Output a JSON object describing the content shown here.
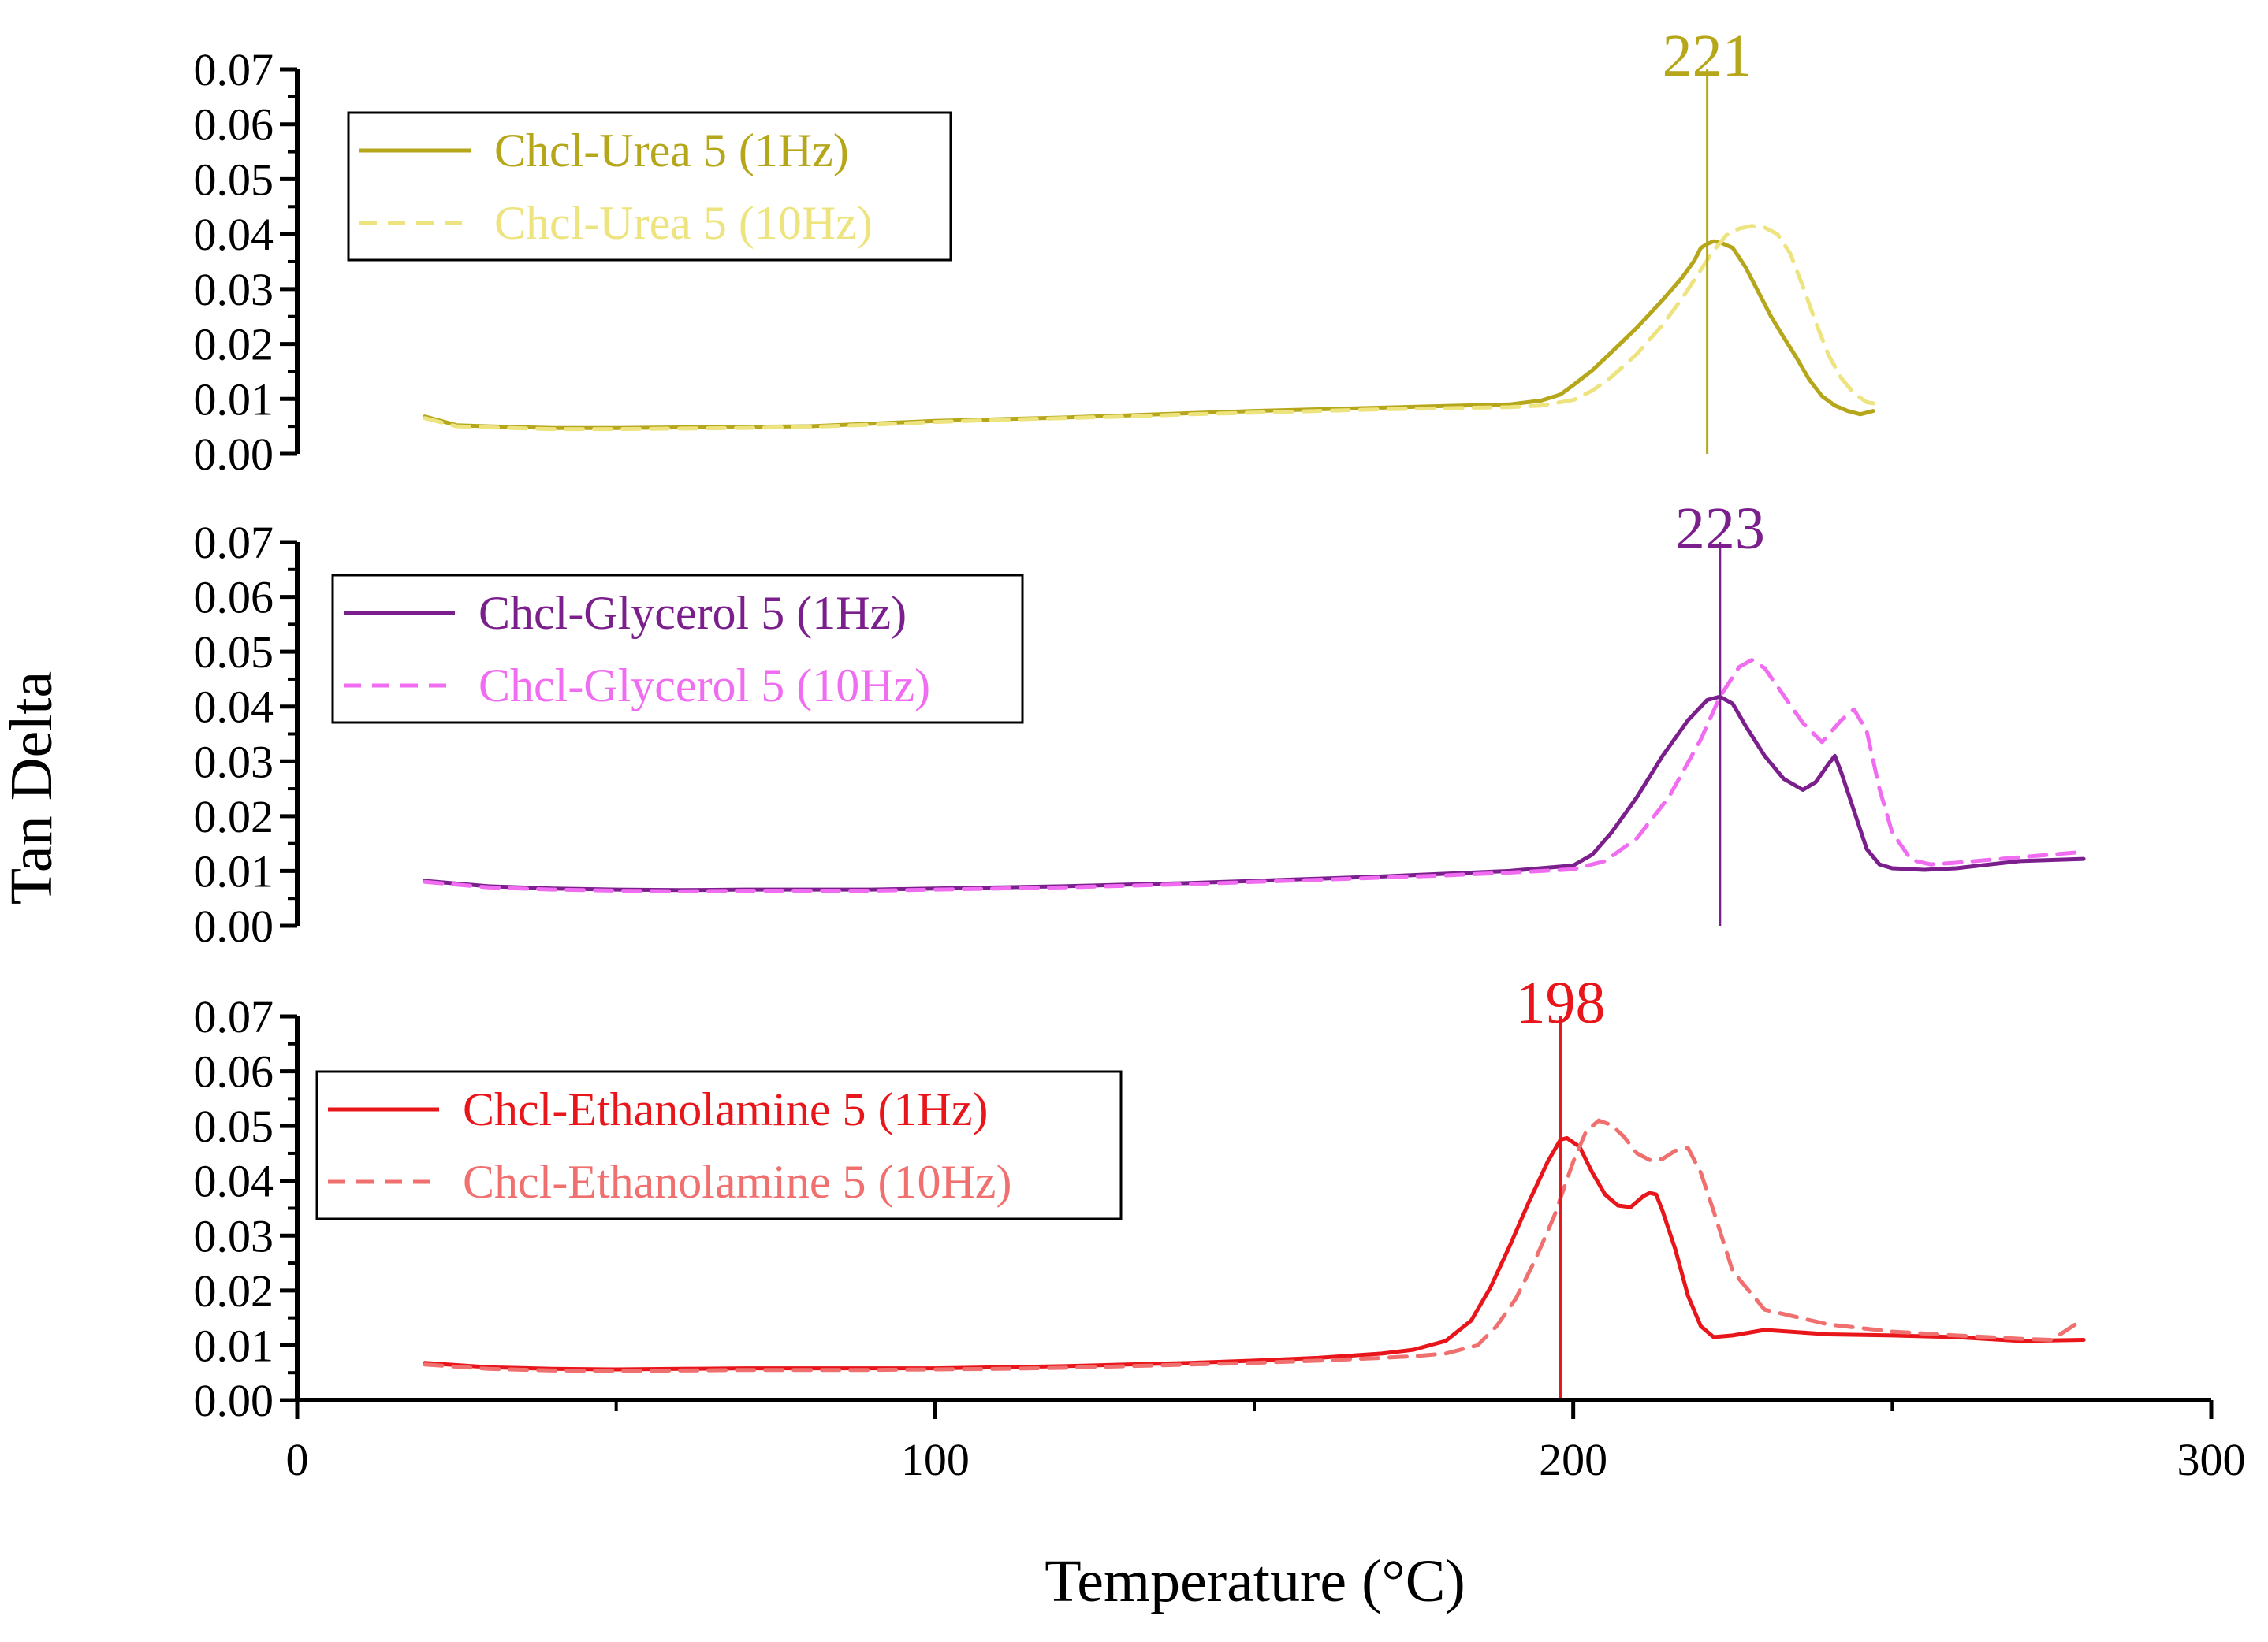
{
  "chart_data": {
    "type": "line",
    "xlabel": "Temperature (°C)",
    "ylabel": "Tan Delta",
    "xlim": [
      0,
      300
    ],
    "x_ticks": [
      "0",
      "100",
      "200",
      "300"
    ],
    "ylim": [
      0,
      0.07
    ],
    "y_ticks": [
      "0.00",
      "0.01",
      "0.02",
      "0.03",
      "0.04",
      "0.05",
      "0.06",
      "0.07"
    ],
    "panels": [
      {
        "peak_label": "221",
        "peak_x": 221,
        "peak_color": "#b5a61a",
        "series": [
          {
            "name": "Chcl-Urea 5 (1Hz)",
            "color": "#b5a61a",
            "dash": "solid",
            "x": [
              20,
              25,
              30,
              40,
              50,
              60,
              70,
              80,
              90,
              100,
              110,
              120,
              130,
              140,
              150,
              160,
              170,
              180,
              190,
              195,
              198,
              200,
              203,
              206,
              210,
              214,
              217,
              219,
              220,
              221,
              222,
              223,
              225,
              227,
              229,
              231,
              233,
              235,
              237,
              239,
              241,
              243,
              245,
              247
            ],
            "y": [
              0.0068,
              0.0052,
              0.005,
              0.0047,
              0.0047,
              0.0048,
              0.0049,
              0.005,
              0.0055,
              0.006,
              0.0063,
              0.0066,
              0.007,
              0.0074,
              0.0078,
              0.0081,
              0.0084,
              0.0087,
              0.009,
              0.0097,
              0.0108,
              0.0125,
              0.0152,
              0.0185,
              0.023,
              0.028,
              0.032,
              0.0352,
              0.0375,
              0.0382,
              0.0387,
              0.0385,
              0.0375,
              0.034,
              0.0295,
              0.025,
              0.0212,
              0.0175,
              0.0135,
              0.0105,
              0.0088,
              0.0078,
              0.0072,
              0.0078
            ]
          },
          {
            "name": "Chcl-Urea 5 (10Hz)",
            "color": "#ede47f",
            "dash": "dashed",
            "x": [
              20,
              25,
              30,
              40,
              50,
              60,
              70,
              80,
              90,
              100,
              110,
              120,
              130,
              140,
              150,
              160,
              170,
              180,
              190,
              195,
              200,
              203,
              206,
              210,
              214,
              217,
              220,
              222,
              224,
              226,
              228,
              230,
              232,
              234,
              236,
              238,
              240,
              242,
              244,
              246,
              247
            ],
            "y": [
              0.0065,
              0.005,
              0.0048,
              0.0045,
              0.0045,
              0.0046,
              0.0047,
              0.0049,
              0.0053,
              0.0058,
              0.0062,
              0.0065,
              0.0068,
              0.0072,
              0.0075,
              0.0078,
              0.0081,
              0.0083,
              0.0085,
              0.0088,
              0.0098,
              0.0115,
              0.014,
              0.0182,
              0.0235,
              0.0282,
              0.0335,
              0.037,
              0.0398,
              0.041,
              0.0415,
              0.0412,
              0.04,
              0.0365,
              0.0305,
              0.024,
              0.018,
              0.0138,
              0.011,
              0.0094,
              0.0092
            ]
          }
        ],
        "legend_position": "top-left"
      },
      {
        "peak_label": "223",
        "peak_x": 223,
        "peak_color": "#7b1f8c",
        "series": [
          {
            "name": "Chcl-Glycerol 5 (1Hz)",
            "color": "#7b1f8c",
            "dash": "solid",
            "x": [
              20,
              30,
              40,
              50,
              60,
              70,
              80,
              90,
              100,
              110,
              120,
              130,
              140,
              150,
              160,
              170,
              180,
              190,
              200,
              203,
              206,
              210,
              214,
              218,
              221,
              223,
              225,
              227,
              230,
              233,
              236,
              238,
              240,
              241,
              242,
              244,
              246,
              248,
              250,
              255,
              260,
              270,
              280
            ],
            "y": [
              0.0082,
              0.0072,
              0.0068,
              0.0066,
              0.0065,
              0.0066,
              0.0066,
              0.0066,
              0.0068,
              0.007,
              0.0072,
              0.0075,
              0.0078,
              0.0082,
              0.0086,
              0.009,
              0.0095,
              0.01,
              0.011,
              0.013,
              0.017,
              0.0235,
              0.031,
              0.0375,
              0.0412,
              0.0418,
              0.0405,
              0.0365,
              0.031,
              0.0268,
              0.0248,
              0.0262,
              0.0295,
              0.031,
              0.028,
              0.021,
              0.014,
              0.0112,
              0.0105,
              0.0102,
              0.0105,
              0.0118,
              0.0122
            ]
          },
          {
            "name": "Chcl-Glycerol 5 (10Hz)",
            "color": "#f06cf0",
            "dash": "dashed",
            "x": [
              20,
              30,
              40,
              50,
              60,
              70,
              80,
              90,
              100,
              110,
              120,
              130,
              140,
              150,
              160,
              170,
              180,
              190,
              200,
              205,
              210,
              215,
              220,
              223,
              226,
              228,
              230,
              233,
              236,
              239,
              242,
              244,
              246,
              248,
              250,
              253,
              256,
              260,
              270,
              280
            ],
            "y": [
              0.008,
              0.007,
              0.0066,
              0.0064,
              0.0063,
              0.0064,
              0.0064,
              0.0064,
              0.0066,
              0.0068,
              0.007,
              0.0073,
              0.0076,
              0.008,
              0.0084,
              0.0088,
              0.0092,
              0.0097,
              0.0103,
              0.0118,
              0.016,
              0.0235,
              0.034,
              0.0418,
              0.0472,
              0.0485,
              0.047,
              0.042,
              0.037,
              0.0335,
              0.0375,
              0.0395,
              0.0355,
              0.025,
              0.017,
              0.012,
              0.0112,
              0.0115,
              0.0125,
              0.0135
            ]
          }
        ],
        "legend_position": "top-left"
      },
      {
        "peak_label": "198",
        "peak_x": 198,
        "peak_color": "#e8151a",
        "series": [
          {
            "name": "Chcl-Ethanolamine 5 (1Hz)",
            "color": "#e8151a",
            "dash": "solid",
            "x": [
              20,
              30,
              40,
              50,
              60,
              70,
              80,
              90,
              100,
              110,
              120,
              130,
              140,
              150,
              160,
              170,
              175,
              180,
              184,
              187,
              190,
              193,
              196,
              198,
              199,
              201,
              203,
              205,
              207,
              209,
              211,
              212,
              213,
              214,
              216,
              218,
              220,
              222,
              225,
              230,
              240,
              250,
              260,
              270,
              280
            ],
            "y": [
              0.0068,
              0.006,
              0.0057,
              0.0056,
              0.0057,
              0.0058,
              0.0058,
              0.0058,
              0.0058,
              0.006,
              0.0062,
              0.0065,
              0.0068,
              0.0072,
              0.0077,
              0.0085,
              0.0092,
              0.0108,
              0.0145,
              0.0205,
              0.028,
              0.036,
              0.0435,
              0.0475,
              0.0478,
              0.0462,
              0.0415,
              0.0375,
              0.0355,
              0.0352,
              0.0372,
              0.0378,
              0.0375,
              0.0345,
              0.0275,
              0.019,
              0.0135,
              0.0115,
              0.0118,
              0.0128,
              0.012,
              0.0118,
              0.0115,
              0.0108,
              0.011
            ]
          },
          {
            "name": "Chcl-Ethanolamine 5 (10Hz)",
            "color": "#f07070",
            "dash": "dashed",
            "x": [
              20,
              30,
              40,
              50,
              60,
              70,
              80,
              90,
              100,
              110,
              120,
              130,
              140,
              150,
              160,
              170,
              175,
              180,
              185,
              188,
              191,
              194,
              197,
              200,
              202,
              204,
              206,
              208,
              210,
              212,
              214,
              216,
              218,
              220,
              222,
              225,
              230,
              240,
              250,
              260,
              270,
              275,
              280
            ],
            "y": [
              0.0065,
              0.0057,
              0.0054,
              0.0053,
              0.0054,
              0.0055,
              0.0055,
              0.0055,
              0.0056,
              0.0057,
              0.0059,
              0.0062,
              0.0065,
              0.0068,
              0.0072,
              0.0077,
              0.008,
              0.0085,
              0.01,
              0.0135,
              0.0185,
              0.0255,
              0.0335,
              0.0435,
              0.049,
              0.051,
              0.0502,
              0.048,
              0.045,
              0.0438,
              0.044,
              0.0455,
              0.046,
              0.0415,
              0.0345,
              0.0235,
              0.0165,
              0.0138,
              0.0125,
              0.0118,
              0.0112,
              0.011,
              0.0148
            ]
          }
        ],
        "legend_position": "top-left"
      }
    ]
  }
}
